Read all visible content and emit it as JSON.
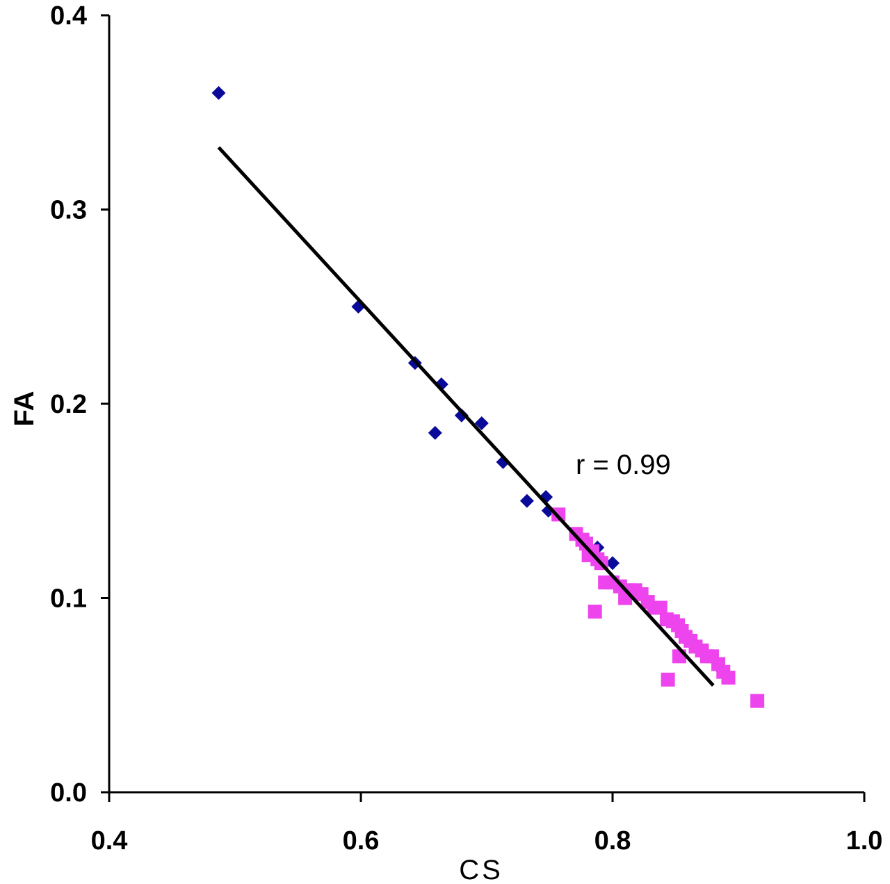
{
  "chart_data": {
    "type": "scatter",
    "title": "",
    "xlabel": "CS",
    "ylabel": "FA",
    "xlim": [
      0.4,
      1.0
    ],
    "ylim": [
      0.0,
      0.4
    ],
    "x_ticks": [
      "0.4",
      "0.6",
      "0.8",
      "1.0"
    ],
    "y_ticks": [
      "0.0",
      "0.1",
      "0.2",
      "0.3",
      "0.4"
    ],
    "grid": false,
    "legend": "none",
    "annotation": "r = 0.99",
    "series": [
      {
        "marker": "diamond",
        "color": "#0a0a9a",
        "points": [
          [
            0.487,
            0.36
          ],
          [
            0.598,
            0.25
          ],
          [
            0.643,
            0.221
          ],
          [
            0.664,
            0.21
          ],
          [
            0.659,
            0.185
          ],
          [
            0.68,
            0.194
          ],
          [
            0.696,
            0.19
          ],
          [
            0.713,
            0.17
          ],
          [
            0.732,
            0.15
          ],
          [
            0.747,
            0.152
          ],
          [
            0.749,
            0.145
          ],
          [
            0.788,
            0.126
          ],
          [
            0.8,
            0.118
          ],
          [
            0.885,
            0.064
          ]
        ]
      },
      {
        "marker": "square",
        "color": "#ee44ee",
        "points": [
          [
            0.757,
            0.143
          ],
          [
            0.771,
            0.133
          ],
          [
            0.776,
            0.13
          ],
          [
            0.779,
            0.128
          ],
          [
            0.781,
            0.122
          ],
          [
            0.784,
            0.124
          ],
          [
            0.788,
            0.12
          ],
          [
            0.791,
            0.118
          ],
          [
            0.794,
            0.108
          ],
          [
            0.8,
            0.108
          ],
          [
            0.806,
            0.106
          ],
          [
            0.81,
            0.1
          ],
          [
            0.813,
            0.104
          ],
          [
            0.818,
            0.104
          ],
          [
            0.823,
            0.102
          ],
          [
            0.828,
            0.098
          ],
          [
            0.833,
            0.095
          ],
          [
            0.838,
            0.095
          ],
          [
            0.786,
            0.093
          ],
          [
            0.843,
            0.089
          ],
          [
            0.848,
            0.088
          ],
          [
            0.852,
            0.086
          ],
          [
            0.855,
            0.083
          ],
          [
            0.858,
            0.08
          ],
          [
            0.862,
            0.078
          ],
          [
            0.866,
            0.075
          ],
          [
            0.871,
            0.073
          ],
          [
            0.875,
            0.07
          ],
          [
            0.879,
            0.07
          ],
          [
            0.853,
            0.07
          ],
          [
            0.884,
            0.066
          ],
          [
            0.888,
            0.062
          ],
          [
            0.892,
            0.059
          ],
          [
            0.844,
            0.058
          ],
          [
            0.915,
            0.047
          ]
        ]
      }
    ],
    "trendline": {
      "color": "#000000",
      "points": [
        [
          0.487,
          0.332
        ],
        [
          0.88,
          0.055
        ]
      ]
    }
  }
}
